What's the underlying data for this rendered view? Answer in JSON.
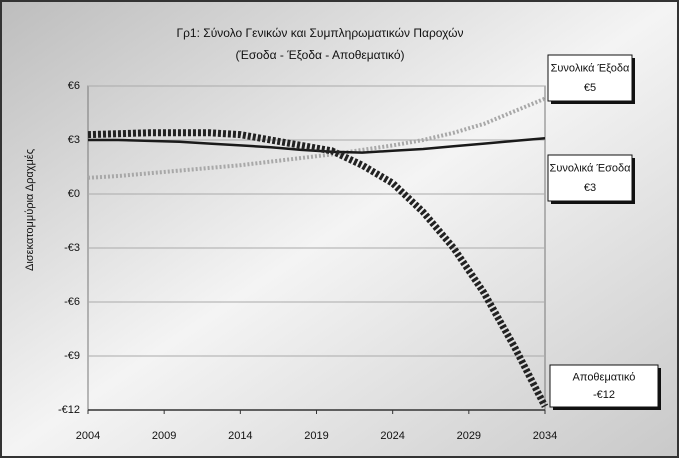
{
  "chart_data": {
    "type": "line",
    "title": "Γρ1: Σύνολο Γενικών και Συμπληρωματικών Παροχών",
    "subtitle": "(Έσοδα - Έξοδα - Αποθεματικό)",
    "y_label": "Δισεκατομμύρια Δραχμές",
    "x": [
      2004,
      2006,
      2008,
      2010,
      2012,
      2014,
      2016,
      2018,
      2020,
      2022,
      2024,
      2026,
      2028,
      2030,
      2032,
      2034
    ],
    "xlim": [
      2004,
      2034
    ],
    "xticks": [
      2004,
      2009,
      2014,
      2019,
      2024,
      2029,
      2034
    ],
    "ylim": [
      -12,
      6
    ],
    "yticks": [
      {
        "value": 6,
        "label": "€6"
      },
      {
        "value": 3,
        "label": "€3"
      },
      {
        "value": 0,
        "label": "€0"
      },
      {
        "value": -3,
        "label": "-€3"
      },
      {
        "value": -6,
        "label": "-€6"
      },
      {
        "value": -9,
        "label": "-€9"
      },
      {
        "value": -12,
        "label": "-€12"
      }
    ],
    "grid": true,
    "series": [
      {
        "name": "Συνολικά Έξοδα",
        "color": "#a8a8a8",
        "style": "dotted",
        "end_label": "€5",
        "values": [
          0.9,
          1.0,
          1.15,
          1.3,
          1.45,
          1.6,
          1.8,
          2.0,
          2.2,
          2.45,
          2.7,
          3.0,
          3.4,
          3.9,
          4.6,
          5.3
        ]
      },
      {
        "name": "Συνολικά Έσοδα",
        "color": "#1a1a1a",
        "style": "solid",
        "end_label": "€3",
        "values": [
          3.0,
          3.0,
          2.95,
          2.9,
          2.8,
          2.7,
          2.6,
          2.45,
          2.35,
          2.3,
          2.4,
          2.5,
          2.65,
          2.8,
          2.95,
          3.1
        ]
      },
      {
        "name": "Αποθεματικό",
        "color": "#222222",
        "style": "dashed",
        "end_label": "-€12",
        "values": [
          3.3,
          3.35,
          3.4,
          3.4,
          3.4,
          3.3,
          3.0,
          2.7,
          2.4,
          1.6,
          0.6,
          -1.0,
          -3.0,
          -5.5,
          -8.5,
          -11.8
        ]
      }
    ]
  }
}
